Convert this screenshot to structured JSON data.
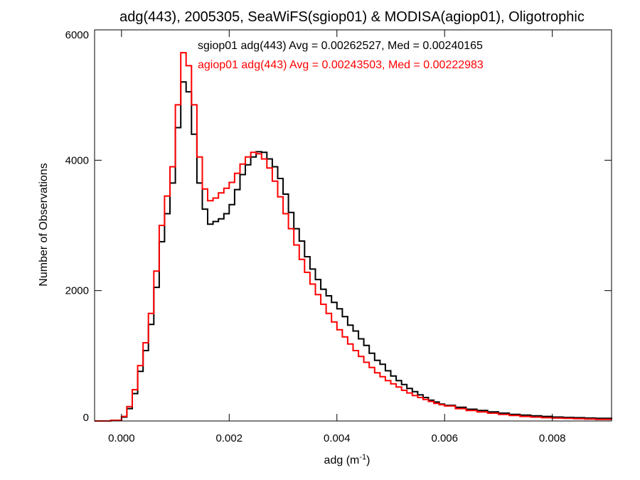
{
  "chart_data": {
    "type": "line",
    "title": "adg(443), 2005305, SeaWiFS(sgiop01) & MODISA(agiop01), Oligotrophic",
    "xlabel_main": "adg (m",
    "xlabel_sup": "-1",
    "xlabel_tail": ")",
    "ylabel": "Number of Observations",
    "xlim": [
      -0.0005,
      0.0091
    ],
    "ylim": [
      0,
      6000
    ],
    "x_ticks": [
      0.0,
      0.002,
      0.004,
      0.006,
      0.008
    ],
    "x_tick_labels": [
      "0.000",
      "0.002",
      "0.004",
      "0.006",
      "0.008"
    ],
    "y_ticks": [
      0,
      2000,
      4000,
      6000
    ],
    "y_tick_labels": [
      "0",
      "2000",
      "4000",
      "6000"
    ],
    "grid": false,
    "legend_position": "top-center",
    "series": [
      {
        "name": "sgiop01 adg(443) Avg = 0.00262527, Med = 0.00240165",
        "color": "#000000",
        "points": [
          [
            -0.0005,
            0
          ],
          [
            -0.0002,
            10
          ],
          [
            0.0,
            60
          ],
          [
            0.0001,
            190
          ],
          [
            0.0002,
            420
          ],
          [
            0.0003,
            760
          ],
          [
            0.0004,
            1080
          ],
          [
            0.0005,
            1480
          ],
          [
            0.0006,
            2050
          ],
          [
            0.0007,
            2750
          ],
          [
            0.0008,
            3180
          ],
          [
            0.0009,
            3650
          ],
          [
            0.001,
            4500
          ],
          [
            0.0011,
            5200
          ],
          [
            0.0012,
            5050
          ],
          [
            0.0013,
            4400
          ],
          [
            0.0014,
            3650
          ],
          [
            0.0015,
            3250
          ],
          [
            0.0016,
            3020
          ],
          [
            0.0017,
            3060
          ],
          [
            0.0018,
            3100
          ],
          [
            0.0019,
            3180
          ],
          [
            0.002,
            3320
          ],
          [
            0.0021,
            3550
          ],
          [
            0.0022,
            3780
          ],
          [
            0.0023,
            3930
          ],
          [
            0.0024,
            4050
          ],
          [
            0.0025,
            4130
          ],
          [
            0.0026,
            4120
          ],
          [
            0.0027,
            4020
          ],
          [
            0.0028,
            3900
          ],
          [
            0.0029,
            3720
          ],
          [
            0.003,
            3480
          ],
          [
            0.0031,
            3200
          ],
          [
            0.0032,
            2950
          ],
          [
            0.0033,
            2760
          ],
          [
            0.0034,
            2520
          ],
          [
            0.0035,
            2330
          ],
          [
            0.0036,
            2170
          ],
          [
            0.0037,
            2020
          ],
          [
            0.0038,
            1920
          ],
          [
            0.0039,
            1820
          ],
          [
            0.004,
            1720
          ],
          [
            0.0041,
            1600
          ],
          [
            0.0042,
            1470
          ],
          [
            0.0043,
            1380
          ],
          [
            0.0044,
            1260
          ],
          [
            0.0045,
            1160
          ],
          [
            0.0046,
            1040
          ],
          [
            0.0047,
            930
          ],
          [
            0.0048,
            870
          ],
          [
            0.0049,
            770
          ],
          [
            0.005,
            690
          ],
          [
            0.0051,
            620
          ],
          [
            0.0052,
            560
          ],
          [
            0.0053,
            500
          ],
          [
            0.0054,
            450
          ],
          [
            0.0055,
            400
          ],
          [
            0.0056,
            360
          ],
          [
            0.0057,
            320
          ],
          [
            0.0058,
            290
          ],
          [
            0.0059,
            260
          ],
          [
            0.006,
            240
          ],
          [
            0.0062,
            210
          ],
          [
            0.0064,
            180
          ],
          [
            0.0066,
            160
          ],
          [
            0.0068,
            140
          ],
          [
            0.007,
            120
          ],
          [
            0.0072,
            100
          ],
          [
            0.0074,
            90
          ],
          [
            0.0076,
            80
          ],
          [
            0.0078,
            70
          ],
          [
            0.008,
            60
          ],
          [
            0.0082,
            55
          ],
          [
            0.0084,
            50
          ],
          [
            0.0086,
            45
          ],
          [
            0.0088,
            40
          ],
          [
            0.0091,
            30
          ]
        ]
      },
      {
        "name": "agiop01 adg(443) Avg = 0.00243503, Med = 0.00222983",
        "color": "#ff0000",
        "points": [
          [
            -0.0005,
            0
          ],
          [
            -0.0002,
            10
          ],
          [
            0.0,
            70
          ],
          [
            0.0001,
            220
          ],
          [
            0.0002,
            480
          ],
          [
            0.0003,
            850
          ],
          [
            0.0004,
            1200
          ],
          [
            0.0005,
            1650
          ],
          [
            0.0006,
            2300
          ],
          [
            0.0007,
            3000
          ],
          [
            0.0008,
            3450
          ],
          [
            0.0009,
            3900
          ],
          [
            0.001,
            4850
          ],
          [
            0.0011,
            5650
          ],
          [
            0.0012,
            5450
          ],
          [
            0.0013,
            4850
          ],
          [
            0.0014,
            4050
          ],
          [
            0.0015,
            3560
          ],
          [
            0.0016,
            3380
          ],
          [
            0.0017,
            3420
          ],
          [
            0.0018,
            3500
          ],
          [
            0.0019,
            3570
          ],
          [
            0.002,
            3660
          ],
          [
            0.0021,
            3800
          ],
          [
            0.0022,
            3940
          ],
          [
            0.0023,
            4050
          ],
          [
            0.0024,
            4120
          ],
          [
            0.0025,
            4100
          ],
          [
            0.0026,
            4020
          ],
          [
            0.0027,
            3880
          ],
          [
            0.0028,
            3680
          ],
          [
            0.0029,
            3440
          ],
          [
            0.003,
            3180
          ],
          [
            0.0031,
            2950
          ],
          [
            0.0032,
            2700
          ],
          [
            0.0033,
            2480
          ],
          [
            0.0034,
            2280
          ],
          [
            0.0035,
            2100
          ],
          [
            0.0036,
            1940
          ],
          [
            0.0037,
            1790
          ],
          [
            0.0038,
            1650
          ],
          [
            0.0039,
            1520
          ],
          [
            0.004,
            1400
          ],
          [
            0.0041,
            1290
          ],
          [
            0.0042,
            1180
          ],
          [
            0.0043,
            1080
          ],
          [
            0.0044,
            990
          ],
          [
            0.0045,
            900
          ],
          [
            0.0046,
            820
          ],
          [
            0.0047,
            740
          ],
          [
            0.0048,
            680
          ],
          [
            0.0049,
            620
          ],
          [
            0.005,
            570
          ],
          [
            0.0051,
            520
          ],
          [
            0.0052,
            470
          ],
          [
            0.0053,
            430
          ],
          [
            0.0054,
            390
          ],
          [
            0.0055,
            360
          ],
          [
            0.0056,
            330
          ],
          [
            0.0057,
            300
          ],
          [
            0.0058,
            270
          ],
          [
            0.0059,
            250
          ],
          [
            0.006,
            230
          ],
          [
            0.0062,
            190
          ],
          [
            0.0064,
            160
          ],
          [
            0.0066,
            140
          ],
          [
            0.0068,
            120
          ],
          [
            0.007,
            100
          ],
          [
            0.0072,
            85
          ],
          [
            0.0074,
            70
          ],
          [
            0.0076,
            60
          ],
          [
            0.0078,
            50
          ],
          [
            0.008,
            45
          ],
          [
            0.0082,
            40
          ],
          [
            0.0084,
            35
          ],
          [
            0.0086,
            30
          ],
          [
            0.0088,
            25
          ],
          [
            0.0091,
            20
          ]
        ]
      }
    ]
  }
}
